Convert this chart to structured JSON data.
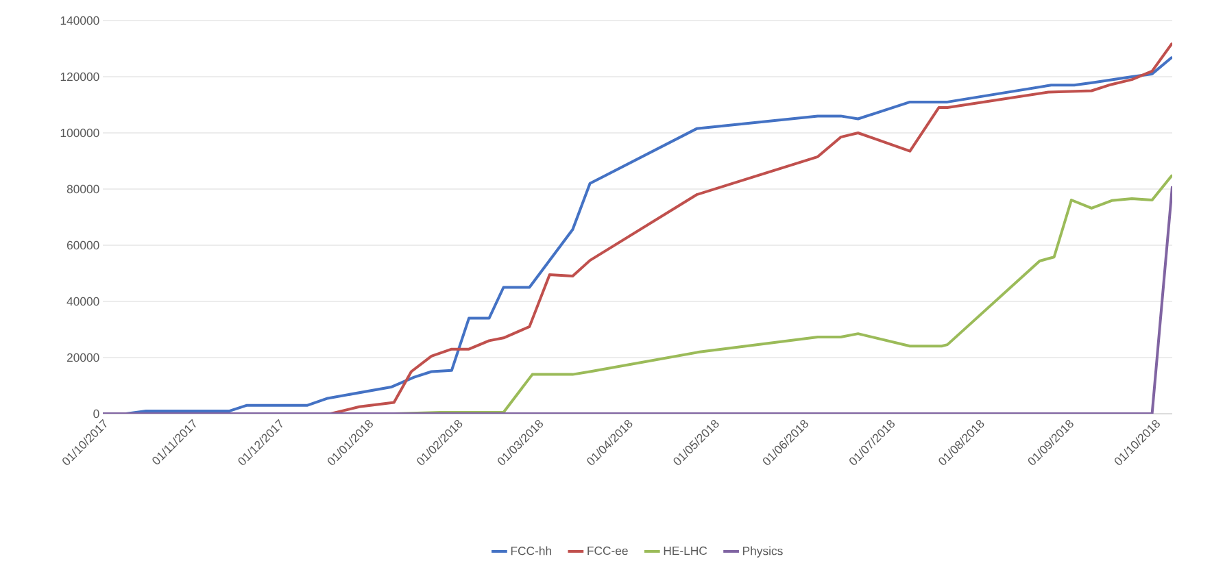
{
  "chart_data": {
    "type": "line",
    "xlim": [
      "2017-10-01",
      "2018-10-07"
    ],
    "xticks": [
      {
        "value": "2017-10-01",
        "label": "01/10/2017"
      },
      {
        "value": "2017-11-01",
        "label": "01/11/2017"
      },
      {
        "value": "2017-12-01",
        "label": "01/12/2017"
      },
      {
        "value": "2018-01-01",
        "label": "01/01/2018"
      },
      {
        "value": "2018-02-01",
        "label": "01/02/2018"
      },
      {
        "value": "2018-03-01",
        "label": "01/03/2018"
      },
      {
        "value": "2018-04-01",
        "label": "01/04/2018"
      },
      {
        "value": "2018-05-01",
        "label": "01/05/2018"
      },
      {
        "value": "2018-06-01",
        "label": "01/06/2018"
      },
      {
        "value": "2018-07-01",
        "label": "01/07/2018"
      },
      {
        "value": "2018-08-01",
        "label": "01/08/2018"
      },
      {
        "value": "2018-09-01",
        "label": "01/09/2018"
      },
      {
        "value": "2018-10-01",
        "label": "01/10/2018"
      }
    ],
    "ylim": [
      0,
      140000
    ],
    "yticks": [
      0,
      20000,
      40000,
      60000,
      80000,
      100000,
      120000,
      140000
    ],
    "grid": "y",
    "legend": "bottom",
    "marker": "none",
    "line_style": "solid",
    "series": [
      {
        "name": "FCC-hh",
        "color": "#4472c4",
        "x": [
          "2017-10-01",
          "2017-10-09",
          "2017-10-16",
          "2017-11-14",
          "2017-11-20",
          "2017-12-11",
          "2017-12-18",
          "2018-01-09",
          "2018-01-17",
          "2018-01-23",
          "2018-01-30",
          "2018-02-05",
          "2018-02-12",
          "2018-02-17",
          "2018-02-26",
          "2018-03-13",
          "2018-03-19",
          "2018-04-25",
          "2018-06-06",
          "2018-06-14",
          "2018-06-20",
          "2018-07-08",
          "2018-07-21",
          "2018-08-26",
          "2018-09-03",
          "2018-09-10",
          "2018-09-23",
          "2018-09-30",
          "2018-10-07"
        ],
        "values": [
          0,
          0,
          1000,
          1000,
          3000,
          3000,
          5500,
          9500,
          13000,
          15000,
          15400,
          34000,
          34000,
          45000,
          45000,
          65600,
          82000,
          101500,
          106000,
          106000,
          105000,
          111000,
          111000,
          117000,
          117000,
          118000,
          120000,
          121000,
          127000
        ]
      },
      {
        "name": "FCC-ee",
        "color": "#c0504d",
        "x": [
          "2017-10-01",
          "2017-12-19",
          "2017-12-29",
          "2018-01-10",
          "2018-01-16",
          "2018-01-23",
          "2018-01-30",
          "2018-02-05",
          "2018-02-12",
          "2018-02-17",
          "2018-02-26",
          "2018-03-05",
          "2018-03-13",
          "2018-03-19",
          "2018-04-25",
          "2018-06-06",
          "2018-06-14",
          "2018-06-20",
          "2018-07-08",
          "2018-07-18",
          "2018-07-21",
          "2018-08-25",
          "2018-09-09",
          "2018-09-15",
          "2018-09-23",
          "2018-09-30",
          "2018-10-07"
        ],
        "values": [
          0,
          0,
          2500,
          4000,
          15000,
          20500,
          23000,
          23000,
          26000,
          27000,
          31000,
          49500,
          49000,
          54600,
          78000,
          91500,
          98500,
          100000,
          93500,
          109000,
          109000,
          114500,
          115000,
          117000,
          119000,
          122000,
          132000
        ]
      },
      {
        "name": "HE-LHC",
        "color": "#9bbb59",
        "x": [
          "2017-10-01",
          "2018-01-10",
          "2018-01-26",
          "2018-02-17",
          "2018-02-27",
          "2018-03-13",
          "2018-03-19",
          "2018-04-26",
          "2018-06-06",
          "2018-06-14",
          "2018-06-20",
          "2018-07-08",
          "2018-07-19",
          "2018-07-21",
          "2018-08-22",
          "2018-08-27",
          "2018-09-02",
          "2018-09-09",
          "2018-09-16",
          "2018-09-23",
          "2018-09-30",
          "2018-10-07"
        ],
        "values": [
          0,
          0,
          500,
          500,
          14000,
          14000,
          15000,
          22000,
          27300,
          27300,
          28500,
          24100,
          24100,
          24600,
          54400,
          55800,
          76100,
          73200,
          75900,
          76600,
          76100,
          85000
        ]
      },
      {
        "name": "Physics",
        "color": "#8064a2",
        "x": [
          "2017-10-01",
          "2018-09-30",
          "2018-10-07"
        ],
        "values": [
          0,
          0,
          81000
        ]
      }
    ]
  }
}
